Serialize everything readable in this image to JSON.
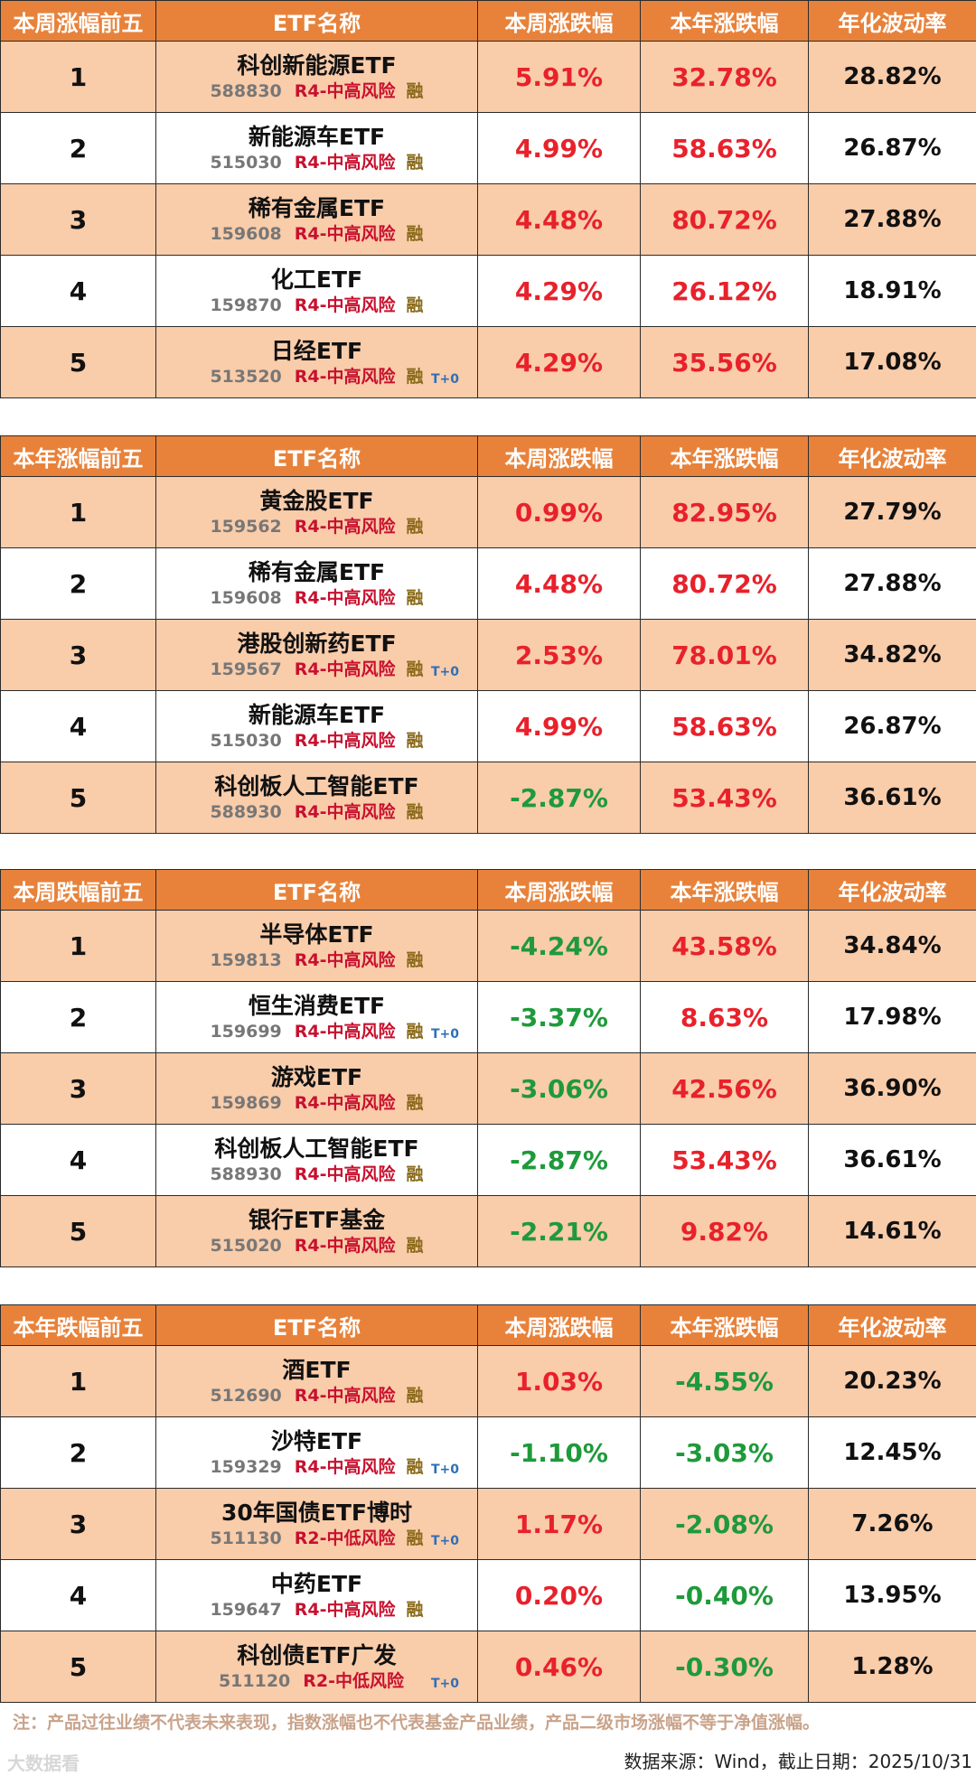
{
  "columns": {
    "name": "ETF名称",
    "week": "本周涨跌幅",
    "year": "本年涨跌幅",
    "vol": "年化波动率"
  },
  "tables": [
    {
      "title": "本周涨幅前五",
      "rows": [
        {
          "rank": "1",
          "name": "科创新能源ETF",
          "code": "588830",
          "risk": "R4-中高风险",
          "rong": "融",
          "t0": "",
          "week": "5.91%",
          "week_color": "red",
          "year": "32.78%",
          "year_color": "red",
          "vol": "28.82%"
        },
        {
          "rank": "2",
          "name": "新能源车ETF",
          "code": "515030",
          "risk": "R4-中高风险",
          "rong": "融",
          "t0": "",
          "week": "4.99%",
          "week_color": "red",
          "year": "58.63%",
          "year_color": "red",
          "vol": "26.87%"
        },
        {
          "rank": "3",
          "name": "稀有金属ETF",
          "code": "159608",
          "risk": "R4-中高风险",
          "rong": "融",
          "t0": "",
          "week": "4.48%",
          "week_color": "red",
          "year": "80.72%",
          "year_color": "red",
          "vol": "27.88%"
        },
        {
          "rank": "4",
          "name": "化工ETF",
          "code": "159870",
          "risk": "R4-中高风险",
          "rong": "融",
          "t0": "",
          "week": "4.29%",
          "week_color": "red",
          "year": "26.12%",
          "year_color": "red",
          "vol": "18.91%"
        },
        {
          "rank": "5",
          "name": "日经ETF",
          "code": "513520",
          "risk": "R4-中高风险",
          "rong": "融",
          "t0": "T+0",
          "week": "4.29%",
          "week_color": "red",
          "year": "35.56%",
          "year_color": "red",
          "vol": "17.08%"
        }
      ]
    },
    {
      "title": "本年涨幅前五",
      "rows": [
        {
          "rank": "1",
          "name": "黄金股ETF",
          "code": "159562",
          "risk": "R4-中高风险",
          "rong": "融",
          "t0": "",
          "week": "0.99%",
          "week_color": "red",
          "year": "82.95%",
          "year_color": "red",
          "vol": "27.79%"
        },
        {
          "rank": "2",
          "name": "稀有金属ETF",
          "code": "159608",
          "risk": "R4-中高风险",
          "rong": "融",
          "t0": "",
          "week": "4.48%",
          "week_color": "red",
          "year": "80.72%",
          "year_color": "red",
          "vol": "27.88%"
        },
        {
          "rank": "3",
          "name": "港股创新药ETF",
          "code": "159567",
          "risk": "R4-中高风险",
          "rong": "融",
          "t0": "T+0",
          "week": "2.53%",
          "week_color": "red",
          "year": "78.01%",
          "year_color": "red",
          "vol": "34.82%"
        },
        {
          "rank": "4",
          "name": "新能源车ETF",
          "code": "515030",
          "risk": "R4-中高风险",
          "rong": "融",
          "t0": "",
          "week": "4.99%",
          "week_color": "red",
          "year": "58.63%",
          "year_color": "red",
          "vol": "26.87%"
        },
        {
          "rank": "5",
          "name": "科创板人工智能ETF",
          "code": "588930",
          "risk": "R4-中高风险",
          "rong": "融",
          "t0": "",
          "week": "-2.87%",
          "week_color": "green",
          "year": "53.43%",
          "year_color": "red",
          "vol": "36.61%"
        }
      ]
    },
    {
      "title": "本周跌幅前五",
      "rows": [
        {
          "rank": "1",
          "name": "半导体ETF",
          "code": "159813",
          "risk": "R4-中高风险",
          "rong": "融",
          "t0": "",
          "week": "-4.24%",
          "week_color": "green",
          "year": "43.58%",
          "year_color": "red",
          "vol": "34.84%"
        },
        {
          "rank": "2",
          "name": "恒生消费ETF",
          "code": "159699",
          "risk": "R4-中高风险",
          "rong": "融",
          "t0": "T+0",
          "week": "-3.37%",
          "week_color": "green",
          "year": "8.63%",
          "year_color": "red",
          "vol": "17.98%"
        },
        {
          "rank": "3",
          "name": "游戏ETF",
          "code": "159869",
          "risk": "R4-中高风险",
          "rong": "融",
          "t0": "",
          "week": "-3.06%",
          "week_color": "green",
          "year": "42.56%",
          "year_color": "red",
          "vol": "36.90%"
        },
        {
          "rank": "4",
          "name": "科创板人工智能ETF",
          "code": "588930",
          "risk": "R4-中高风险",
          "rong": "融",
          "t0": "",
          "week": "-2.87%",
          "week_color": "green",
          "year": "53.43%",
          "year_color": "red",
          "vol": "36.61%"
        },
        {
          "rank": "5",
          "name": "银行ETF基金",
          "code": "515020",
          "risk": "R4-中高风险",
          "rong": "融",
          "t0": "",
          "week": "-2.21%",
          "week_color": "green",
          "year": "9.82%",
          "year_color": "red",
          "vol": "14.61%"
        }
      ]
    },
    {
      "title": "本年跌幅前五",
      "rows": [
        {
          "rank": "1",
          "name": "酒ETF",
          "code": "512690",
          "risk": "R4-中高风险",
          "rong": "融",
          "t0": "",
          "week": "1.03%",
          "week_color": "red",
          "year": "-4.55%",
          "year_color": "green",
          "vol": "20.23%"
        },
        {
          "rank": "2",
          "name": "沙特ETF",
          "code": "159329",
          "risk": "R4-中高风险",
          "rong": "融",
          "t0": "T+0",
          "week": "-1.10%",
          "week_color": "green",
          "year": "-3.03%",
          "year_color": "green",
          "vol": "12.45%"
        },
        {
          "rank": "3",
          "name": "30年国债ETF博时",
          "code": "511130",
          "risk": "R2-中低风险",
          "rong": "融",
          "t0": "T+0",
          "week": "1.17%",
          "week_color": "red",
          "year": "-2.08%",
          "year_color": "green",
          "vol": "7.26%"
        },
        {
          "rank": "4",
          "name": "中药ETF",
          "code": "159647",
          "risk": "R4-中高风险",
          "rong": "融",
          "t0": "",
          "week": "0.20%",
          "week_color": "red",
          "year": "-0.40%",
          "year_color": "green",
          "vol": "13.95%"
        },
        {
          "rank": "5",
          "name": "科创债ETF广发",
          "code": "511120",
          "risk": "R2-中低风险",
          "rong": "",
          "t0": "T+0",
          "week": "0.46%",
          "week_color": "red",
          "year": "-0.30%",
          "year_color": "green",
          "vol": "1.28%"
        }
      ]
    }
  ],
  "footnote": "注：产品过往业绩不代表未来表现，指数涨幅也不代表基金产品业绩，产品二级市场涨幅不等于净值涨幅。",
  "source": "数据来源：Wind，截止日期：2025/10/31",
  "watermark": "大数据看"
}
